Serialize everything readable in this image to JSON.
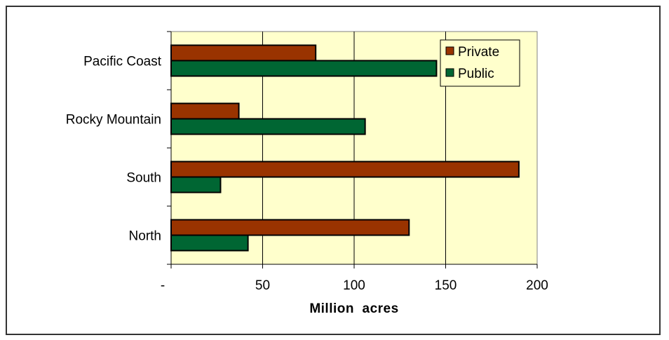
{
  "chart_data": {
    "type": "bar",
    "orientation": "horizontal",
    "categories": [
      "Pacific Coast",
      "Rocky Mountain",
      "South",
      "North"
    ],
    "series": [
      {
        "name": "Private",
        "values": [
          79,
          37,
          190,
          130
        ],
        "color": "#993300"
      },
      {
        "name": "Public",
        "values": [
          145,
          106,
          27,
          42
        ],
        "color": "#006633"
      }
    ],
    "xlabel": "Million  acres",
    "ylabel": "",
    "xlim": [
      0,
      200
    ],
    "xticks": [
      0,
      50,
      100,
      150,
      200
    ],
    "xtick_labels": [
      "-",
      "50",
      "100",
      "150",
      "200"
    ],
    "grid": "vertical",
    "legend_position": "top-right",
    "plot_background": "#ffffcc"
  }
}
